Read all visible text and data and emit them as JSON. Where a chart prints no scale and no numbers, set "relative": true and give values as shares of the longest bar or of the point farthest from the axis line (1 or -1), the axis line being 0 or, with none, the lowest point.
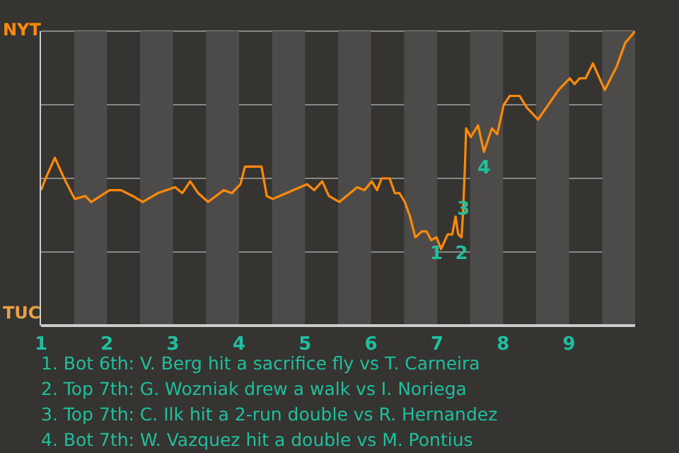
{
  "chart_data": {
    "type": "line",
    "marker": "none",
    "grid": "y",
    "legend": false,
    "relative": true,
    "x": [
      1.0,
      1.07,
      1.21,
      1.35,
      1.51,
      1.67,
      1.76,
      2.04,
      2.21,
      2.39,
      2.54,
      2.77,
      3.03,
      3.14,
      3.26,
      3.38,
      3.53,
      3.77,
      3.89,
      4.02,
      4.09,
      4.34,
      4.42,
      4.51,
      4.72,
      5.03,
      5.14,
      5.26,
      5.36,
      5.52,
      5.79,
      5.9,
      6.01,
      6.09,
      6.16,
      6.28,
      6.36,
      6.43,
      6.51,
      6.59,
      6.67,
      6.77,
      6.84,
      6.91,
      6.99,
      7.06,
      7.16,
      7.23,
      7.28,
      7.32,
      7.37,
      7.39,
      7.42,
      7.44,
      7.51,
      7.62,
      7.71,
      7.83,
      7.91,
      8.01,
      8.1,
      8.25,
      8.36,
      8.53,
      8.84,
      9.01,
      9.08,
      9.16,
      9.25,
      9.36,
      9.54,
      9.72,
      9.85,
      10
    ],
    "series": [
      {
        "color": "#ff8a0a",
        "values": [
          0.46,
          0.5,
          0.57,
          0.5,
          0.43,
          0.44,
          0.42,
          0.46,
          0.46,
          0.44,
          0.42,
          0.45,
          0.47,
          0.45,
          0.49,
          0.45,
          0.42,
          0.46,
          0.45,
          0.48,
          0.54,
          0.54,
          0.44,
          0.43,
          0.45,
          0.48,
          0.46,
          0.49,
          0.44,
          0.42,
          0.47,
          0.46,
          0.49,
          0.46,
          0.5,
          0.5,
          0.45,
          0.45,
          0.42,
          0.37,
          0.3,
          0.32,
          0.32,
          0.29,
          0.3,
          0.26,
          0.31,
          0.31,
          0.37,
          0.31,
          0.3,
          0.37,
          0.53,
          0.67,
          0.64,
          0.68,
          0.59,
          0.67,
          0.65,
          0.75,
          0.78,
          0.78,
          0.74,
          0.7,
          0.8,
          0.84,
          0.82,
          0.84,
          0.84,
          0.89,
          0.8,
          0.88,
          0.96,
          1.0
        ]
      }
    ],
    "xlim": [
      1,
      10
    ],
    "xticks": [
      1,
      2,
      3,
      4,
      5,
      6,
      7,
      8,
      9
    ],
    "bands": [
      {
        "axis": "x",
        "from": 1.5,
        "to": 2,
        "color": "#4d4b49"
      },
      {
        "axis": "x",
        "from": 2.5,
        "to": 3,
        "color": "#4d4b49"
      },
      {
        "axis": "x",
        "from": 3.5,
        "to": 4,
        "color": "#4d4b49"
      },
      {
        "axis": "x",
        "from": 4.5,
        "to": 5,
        "color": "#4d4b49"
      },
      {
        "axis": "x",
        "from": 5.5,
        "to": 6,
        "color": "#4d4b49"
      },
      {
        "axis": "x",
        "from": 6.5,
        "to": 7,
        "color": "#4d4b49"
      },
      {
        "axis": "x",
        "from": 7.5,
        "to": 8,
        "color": "#4d4b49"
      },
      {
        "axis": "x",
        "from": 8.5,
        "to": 9,
        "color": "#4d4b49"
      },
      {
        "axis": "x",
        "from": 9.5,
        "to": 10,
        "color": "#4d4b49"
      }
    ],
    "annotations": [
      "NYT",
      "TUC",
      {
        "text": "1",
        "x": 6.99,
        "y": 0.3
      },
      {
        "text": "2",
        "x": 7.37,
        "y": 0.3
      },
      {
        "text": "3",
        "x": 7.4,
        "y": 0.45
      },
      {
        "text": "4",
        "x": 7.71,
        "y": 0.59
      },
      "1. Bot 6th: V. Berg hit a sacrifice fly vs T. Carneira",
      "2. Top 7th: G. Wozniak drew a walk vs I. Noriega",
      "3. Top 7th: C. Ilk hit a 2-run double vs R. Hernandez",
      "4. Bot 7th: W. Vazquez hit a double vs M. Pontius"
    ]
  }
}
